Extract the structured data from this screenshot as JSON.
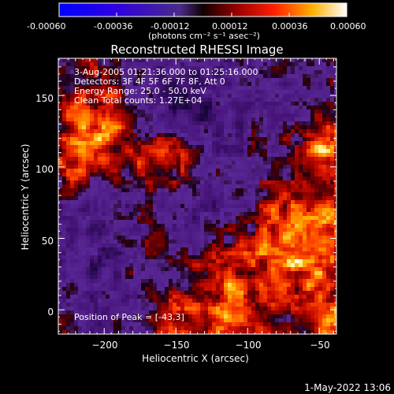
{
  "colorbar": {
    "tick_labels": [
      "-0.00060",
      "-0.00036",
      "-0.00012",
      "0.00012",
      "0.00036",
      "0.00060"
    ],
    "unit_label": "(photons cm⁻² s⁻¹ asec⁻²)",
    "range": [
      -0.0006,
      0.0006
    ]
  },
  "chart_data": {
    "type": "heatmap",
    "title": "Reconstructed RHESSI Image",
    "xlabel": "Heliocentric X (arcsec)",
    "ylabel": "Heliocentric Y (arcsec)",
    "xlim": [
      -232,
      -38
    ],
    "ylim": [
      -17,
      176
    ],
    "x_ticks": [
      -200,
      -150,
      -100,
      -50
    ],
    "y_ticks": [
      0,
      50,
      100,
      150
    ],
    "annotations": [
      "3-Aug-2005 01:21:36.000 to 01:25:16.000",
      "Detectors: 3F 4F 5F 6F 7F 8F, Att 0",
      "Energy Range: 25.0 - 50.0 keV",
      "Clean    Total counts: 1.27E+04"
    ],
    "peak_label": "Position of Peak = [-43,3]",
    "peak_position": [
      -43,
      3
    ]
  },
  "footer": {
    "timestamp": "1-May-2022 13:06"
  }
}
